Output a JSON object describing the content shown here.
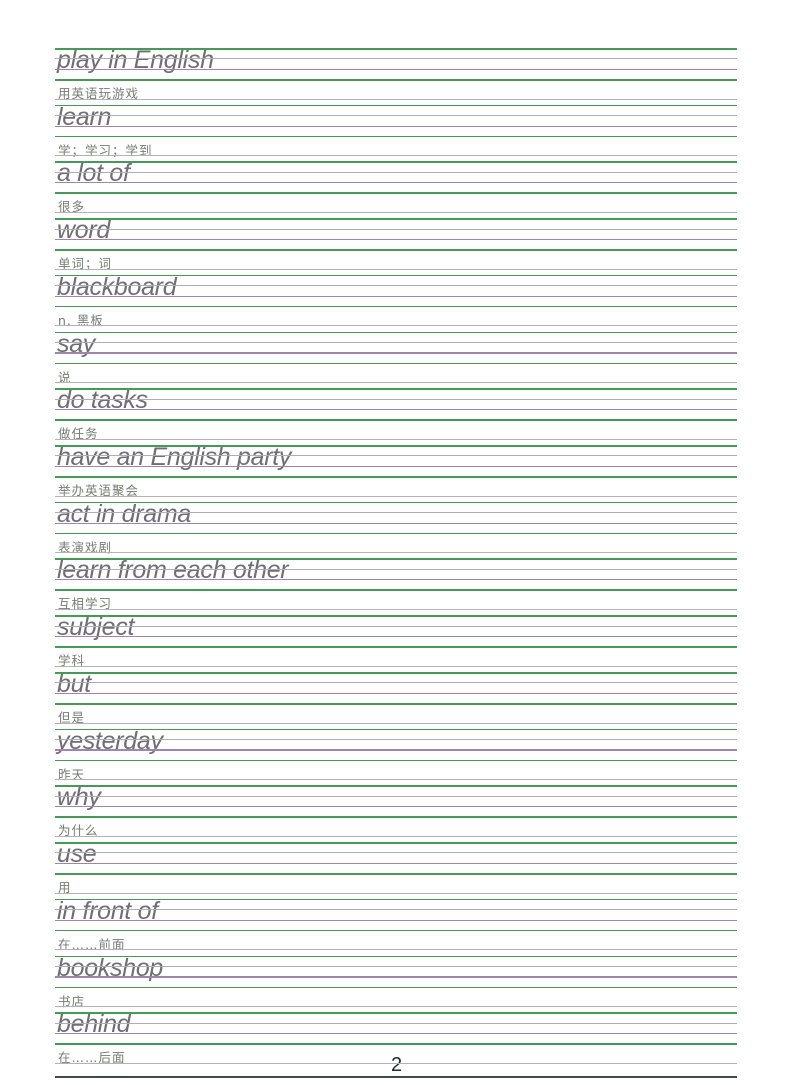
{
  "page": {
    "number": "2"
  },
  "colors": {
    "page_bg": "#ffffff",
    "line_green": "#459a58",
    "line_gray": "#aeaeb4",
    "line_purple": "#9c86ac",
    "line_underline": "#b2b2b8",
    "text_english": "#6e6e74",
    "text_chinese": "#767d72",
    "bottom_border": "#45484c",
    "page_number_color": "#26282a"
  },
  "entries": [
    {
      "en": "play in English",
      "zh": "用英语玩游戏"
    },
    {
      "en": "learn",
      "zh": "学；学习；学到"
    },
    {
      "en": "a lot of",
      "zh": "很多"
    },
    {
      "en": "word",
      "zh": "单词；词"
    },
    {
      "en": "blackboard",
      "zh": "n. 黑板"
    },
    {
      "en": "say",
      "zh": "说"
    },
    {
      "en": "do tasks",
      "zh": "做任务"
    },
    {
      "en": "have an English party",
      "zh": "举办英语聚会"
    },
    {
      "en": "act in drama",
      "zh": "表演戏剧"
    },
    {
      "en": "learn from each other",
      "zh": "互相学习"
    },
    {
      "en": "subject",
      "zh": "学科"
    },
    {
      "en": "but",
      "zh": "但是"
    },
    {
      "en": "yesterday",
      "zh": "昨天"
    },
    {
      "en": "why",
      "zh": "为什么"
    },
    {
      "en": "use",
      "zh": "用"
    },
    {
      "en": "in front of",
      "zh": "在……前面"
    },
    {
      "en": "bookshop",
      "zh": "书店"
    },
    {
      "en": "behind",
      "zh": "在……后面"
    }
  ]
}
